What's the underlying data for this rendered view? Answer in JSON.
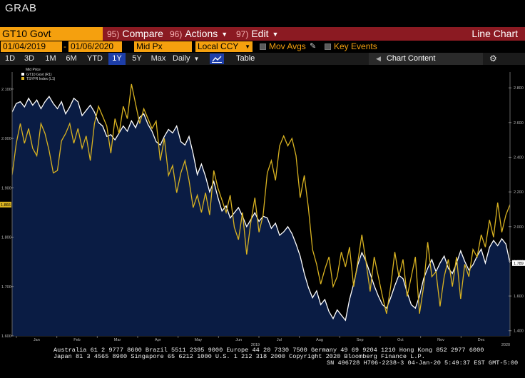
{
  "window": {
    "title": "GRAB"
  },
  "command_bar": {
    "security": "GT10 Govt",
    "buttons": [
      {
        "num": "95)",
        "label": "Compare",
        "dropdown": false
      },
      {
        "num": "96)",
        "label": "Actions",
        "dropdown": true
      },
      {
        "num": "97)",
        "label": "Edit",
        "dropdown": true
      }
    ],
    "view_title": "Line Chart"
  },
  "params": {
    "start_date": "01/04/2019",
    "separator": "-",
    "end_date": "01/06/2020",
    "price_field": "Mid Px",
    "currency": "Local CCY",
    "mov_avgs_label": "Mov Avgs",
    "key_events_label": "Key Events"
  },
  "range_bar": {
    "ranges": [
      "1D",
      "3D",
      "1M",
      "6M",
      "YTD",
      "1Y",
      "5Y",
      "Max"
    ],
    "active_range": "1Y",
    "frequency": "Daily",
    "table_label": "Table",
    "content_label": "Chart Content"
  },
  "colors": {
    "accent_orange": "#f5a00e",
    "command_red": "#8b1a22",
    "area_fill": "#0a1c44",
    "yellow_series": "#d9b321",
    "active_blue": "#1d3ea8"
  },
  "chart_data": {
    "type": "line",
    "legend_title": "Mid Price",
    "legend_placement": "top-left",
    "x_labels": [
      "Jan",
      "Feb",
      "Mar",
      "Apr",
      "May",
      "Jun",
      "Jul",
      "Aug",
      "Sep",
      "Oct",
      "Nov",
      "Dec"
    ],
    "x_year_labels": [
      "2019",
      "2020"
    ],
    "left_axis": {
      "ylim": [
        1.6,
        2.12
      ],
      "ticks": [
        "2.100",
        "2.000",
        "1.900",
        "1.800",
        "1.700",
        "1.600"
      ],
      "last_label": "1.866"
    },
    "right_axis": {
      "ylim": [
        1.37,
        2.85
      ],
      "ticks": [
        "2.800",
        "2.600",
        "2.400",
        "2.200",
        "2.000",
        "1.800",
        "1.600",
        "1.400"
      ],
      "last_label": "1.789"
    },
    "series": [
      {
        "name": "GT10 Govt  (R1)",
        "axis": "right",
        "style": "area",
        "values": [
          2.66,
          2.71,
          2.72,
          2.69,
          2.74,
          2.7,
          2.73,
          2.68,
          2.72,
          2.75,
          2.71,
          2.68,
          2.72,
          2.65,
          2.69,
          2.74,
          2.72,
          2.64,
          2.67,
          2.7,
          2.66,
          2.6,
          2.58,
          2.52,
          2.53,
          2.5,
          2.54,
          2.58,
          2.55,
          2.61,
          2.57,
          2.63,
          2.65,
          2.59,
          2.55,
          2.49,
          2.47,
          2.52,
          2.56,
          2.54,
          2.58,
          2.49,
          2.47,
          2.52,
          2.42,
          2.3,
          2.36,
          2.29,
          2.2,
          2.26,
          2.17,
          2.09,
          2.12,
          2.05,
          2.08,
          2.11,
          2.06,
          2.0,
          2.04,
          2.08,
          2.03,
          2.06,
          2.05,
          1.99,
          2.02,
          1.95,
          1.97,
          2.0,
          1.96,
          1.9,
          1.83,
          1.73,
          1.65,
          1.59,
          1.63,
          1.55,
          1.58,
          1.51,
          1.47,
          1.52,
          1.49,
          1.46,
          1.58,
          1.67,
          1.78,
          1.85,
          1.8,
          1.73,
          1.66,
          1.6,
          1.55,
          1.53,
          1.59,
          1.66,
          1.72,
          1.7,
          1.62,
          1.55,
          1.53,
          1.6,
          1.7,
          1.76,
          1.81,
          1.74,
          1.79,
          1.83,
          1.76,
          1.73,
          1.79,
          1.86,
          1.8,
          1.75,
          1.78,
          1.83,
          1.87,
          1.79,
          1.88,
          1.92,
          1.89,
          1.93,
          1.9,
          1.79
        ]
      },
      {
        "name": "TSYFR Index  (L1)",
        "axis": "left",
        "style": "line",
        "values": [
          1.926,
          1.99,
          2.03,
          1.99,
          2.02,
          1.98,
          1.965,
          2.03,
          2.01,
          1.975,
          1.93,
          1.935,
          1.995,
          2.01,
          2.03,
          1.99,
          2.02,
          1.98,
          2.005,
          1.955,
          2.03,
          2.065,
          2.045,
          2.025,
          1.97,
          2.04,
          2.01,
          2.065,
          2.04,
          2.11,
          2.07,
          2.03,
          2.06,
          2.04,
          2.02,
          2.035,
          1.955,
          2.0,
          1.925,
          1.945,
          1.89,
          1.93,
          1.955,
          1.915,
          1.86,
          1.885,
          1.85,
          1.89,
          1.845,
          1.935,
          1.9,
          1.875,
          1.85,
          1.885,
          1.82,
          1.795,
          1.85,
          1.765,
          1.83,
          1.88,
          1.81,
          1.845,
          1.93,
          1.955,
          1.915,
          1.985,
          2.005,
          1.985,
          2.0,
          1.965,
          1.88,
          1.925,
          1.86,
          1.775,
          1.745,
          1.705,
          1.735,
          1.76,
          1.7,
          1.72,
          1.77,
          1.74,
          1.78,
          1.7,
          1.75,
          1.805,
          1.75,
          1.69,
          1.76,
          1.72,
          1.68,
          1.645,
          1.7,
          1.77,
          1.72,
          1.755,
          1.68,
          1.72,
          1.76,
          1.645,
          1.7,
          1.79,
          1.72,
          1.73,
          1.66,
          1.72,
          1.755,
          1.7,
          1.76,
          1.675,
          1.745,
          1.72,
          1.775,
          1.76,
          1.805,
          1.78,
          1.835,
          1.8,
          1.87,
          1.81,
          1.845,
          1.866
        ]
      }
    ]
  },
  "footer": {
    "line1": "Australia 61 2 9777 8600 Brazil 5511 2395 9000 Europe 44 20 7330 7500 Germany 49 69 9204 1210 Hong Kong 852 2977 6000",
    "line2": "Japan 81 3 4565 8900       Singapore 65 6212 1000       U.S. 1 212 318 2000           Copyright 2020 Bloomberg Finance L.P.",
    "line3": "SN 496728 H706-2238-3 04-Jan-20  5:49:37 EST  GMT-5:00"
  }
}
